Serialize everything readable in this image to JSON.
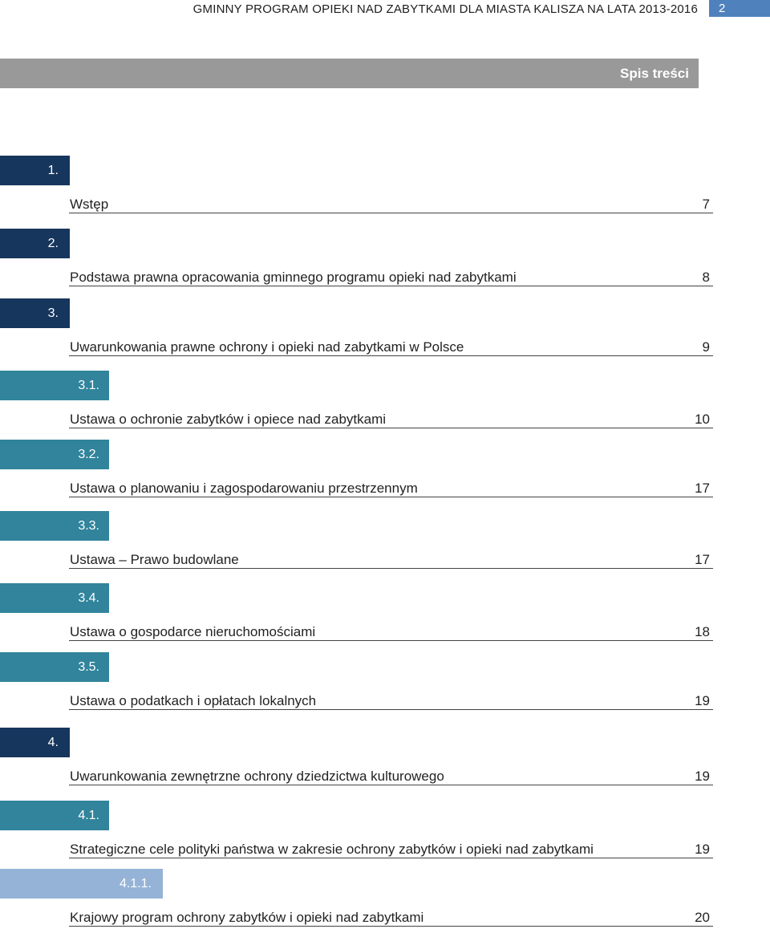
{
  "header": {
    "title": "GMINNY PROGRAM OPIEKI NAD ZABYTKAMI DLA MIASTA KALISZA NA LATA 2013-2016",
    "page": "2"
  },
  "toc_title": "Spis treści",
  "entries": [
    {
      "number": "1.",
      "level": 1,
      "title": "Wstęp",
      "page": "7"
    },
    {
      "number": "2.",
      "level": 1,
      "title": "Podstawa prawna opracowania gminnego programu opieki nad zabytkami",
      "page": "8"
    },
    {
      "number": "3.",
      "level": 1,
      "title": "Uwarunkowania prawne ochrony i opieki nad zabytkami w Polsce",
      "page": "9"
    },
    {
      "number": "3.1.",
      "level": 2,
      "title": "Ustawa o ochronie zabytków i opiece nad zabytkami",
      "page": "10"
    },
    {
      "number": "3.2.",
      "level": 2,
      "title": "Ustawa o planowaniu i zagospodarowaniu przestrzennym",
      "page": "17"
    },
    {
      "number": "3.3.",
      "level": 2,
      "title": "Ustawa – Prawo budowlane",
      "page": "17"
    },
    {
      "number": "3.4.",
      "level": 2,
      "title": "Ustawa o gospodarce nieruchomościami",
      "page": "18"
    },
    {
      "number": "3.5.",
      "level": 2,
      "title": "Ustawa o podatkach i opłatach lokalnych",
      "page": "19"
    },
    {
      "number": "4.",
      "level": 1,
      "title": "Uwarunkowania zewnętrzne ochrony dziedzictwa kulturowego",
      "page": "19"
    },
    {
      "number": "4.1.",
      "level": 2,
      "title": "Strategiczne cele polityki państwa w zakresie ochrony zabytków i opieki nad zabytkami",
      "page": "19"
    },
    {
      "number": "4.1.1.",
      "level": 3,
      "title": "Krajowy program ochrony zabytków i opieki nad zabytkami",
      "page": "20"
    }
  ],
  "colors": {
    "level1": "#17365d",
    "level2": "#31849b",
    "level3": "#95b3d7",
    "title_band": "#999999",
    "page_badge": "#4f81bd"
  }
}
